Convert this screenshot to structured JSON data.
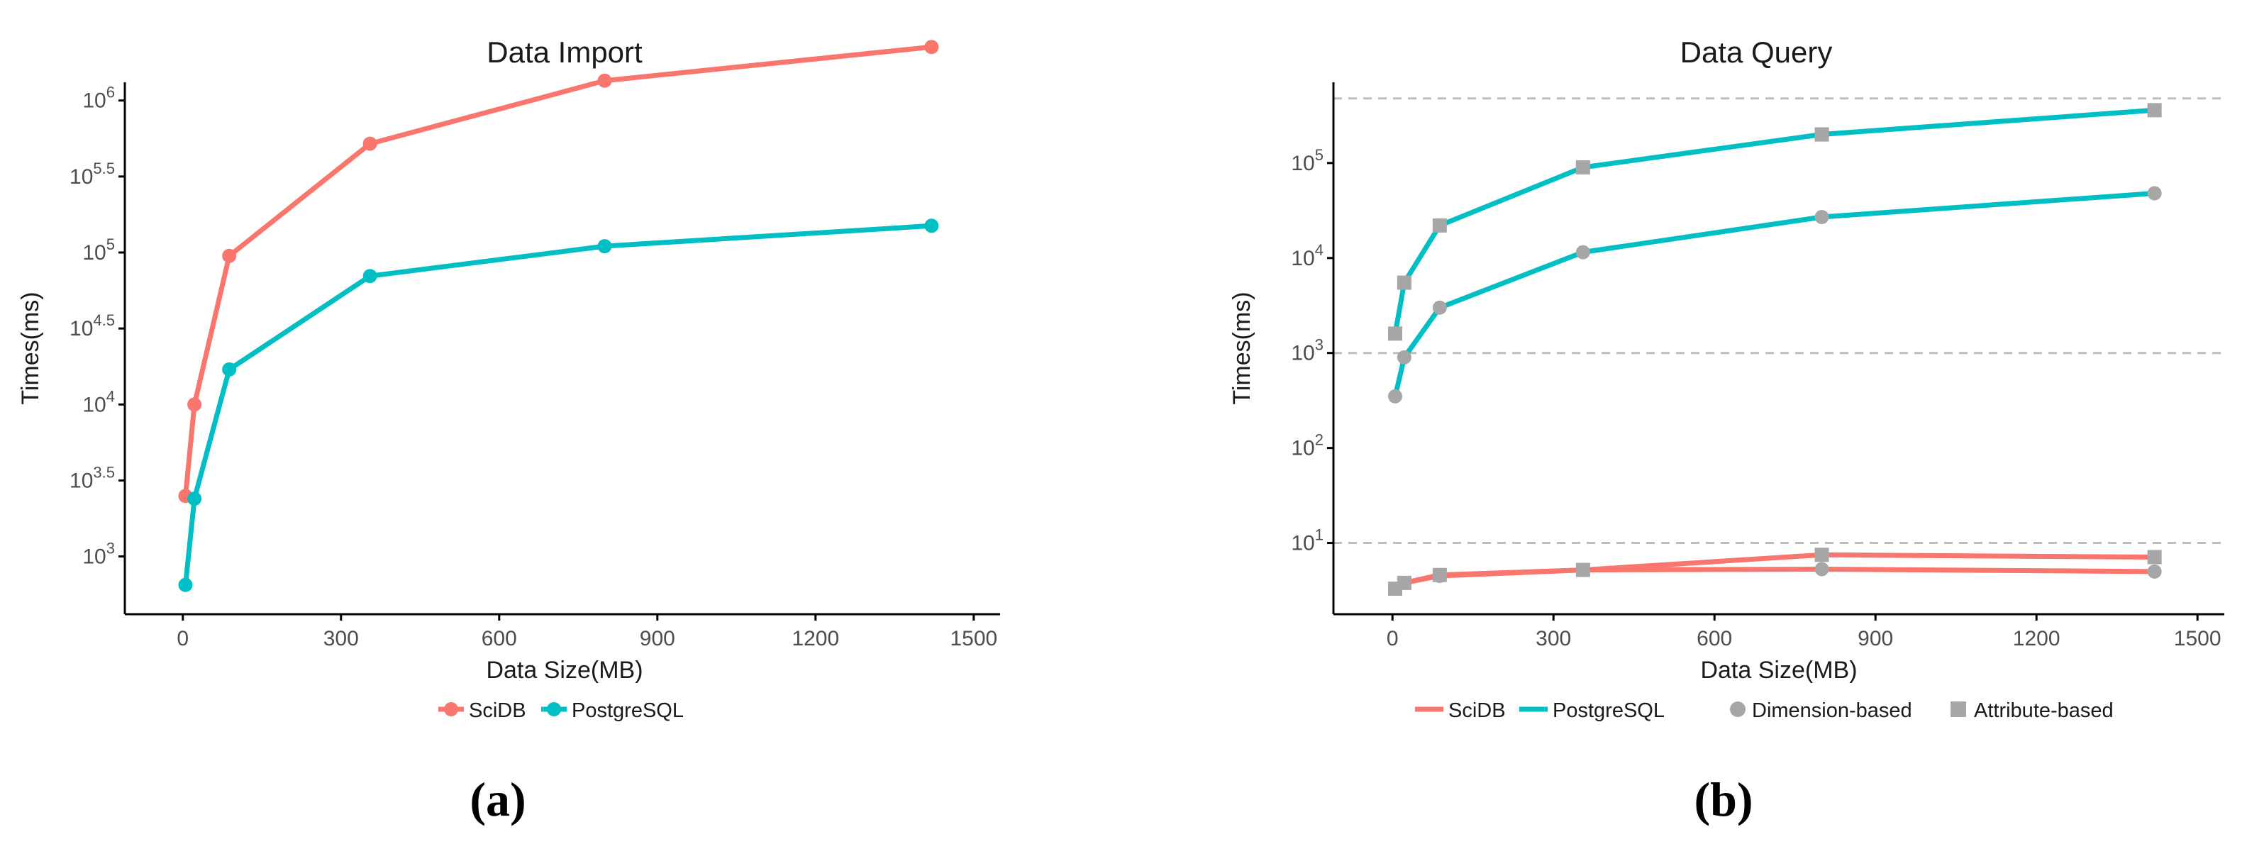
{
  "chart_data": [
    {
      "type": "line",
      "title": "Data Import",
      "xlabel": "Data Size(MB)",
      "ylabel": "Times(ms)",
      "xlim": [
        -110,
        1550
      ],
      "xticks": [
        0,
        300,
        600,
        900,
        1200,
        1500
      ],
      "yscale": "log",
      "ylim_log10": [
        2.62,
        6.12
      ],
      "yticks": [
        {
          "exp": 3,
          "label": "10^3"
        },
        {
          "exp": 3.5,
          "label": "10^3.5"
        },
        {
          "exp": 4,
          "label": "10^4"
        },
        {
          "exp": 4.5,
          "label": "10^4.5"
        },
        {
          "exp": 5,
          "label": "10^5"
        },
        {
          "exp": 5.5,
          "label": "10^5.5"
        },
        {
          "exp": 6,
          "label": "10^6"
        }
      ],
      "grid": false,
      "legend_position": "bottom",
      "x": [
        5,
        22,
        88,
        355,
        800,
        1420
      ],
      "series": [
        {
          "name": "SciDB",
          "color": "#F8766D",
          "values": [
            2500,
            10000,
            95000,
            520000,
            1350000,
            2250000
          ]
        },
        {
          "name": "PostgreSQL",
          "color": "#00BFC4",
          "values": [
            650,
            2400,
            17000,
            70000,
            110000,
            150000
          ]
        }
      ],
      "caption": "(a)"
    },
    {
      "type": "line",
      "title": "Data Query",
      "xlabel": "Data Size(MB)",
      "ylabel": "Times(ms)",
      "xlim": [
        -110,
        1550
      ],
      "xticks": [
        0,
        300,
        600,
        900,
        1200,
        1500
      ],
      "yscale": "log",
      "ylim_log10": [
        0.25,
        5.85
      ],
      "yticks": [
        {
          "exp": 1,
          "label": "10^1"
        },
        {
          "exp": 2,
          "label": "10^2"
        },
        {
          "exp": 3,
          "label": "10^3"
        },
        {
          "exp": 4,
          "label": "10^4"
        },
        {
          "exp": 5,
          "label": "10^5"
        }
      ],
      "hlines_log10": [
        1,
        3,
        5.68
      ],
      "grid": false,
      "legend_position": "bottom",
      "x": [
        5,
        22,
        88,
        355,
        800,
        1420
      ],
      "series": [
        {
          "name": "SciDB",
          "query": "Dimension-based",
          "color": "#F8766D",
          "marker": "circle",
          "values": [
            3.3,
            3.8,
            4.5,
            5.2,
            5.3,
            5.0
          ]
        },
        {
          "name": "SciDB",
          "query": "Attribute-based",
          "color": "#F8766D",
          "marker": "square",
          "values": [
            3.3,
            3.8,
            4.6,
            5.2,
            7.5,
            7.1
          ]
        },
        {
          "name": "PostgreSQL",
          "query": "Dimension-based",
          "color": "#00BFC4",
          "marker": "circle",
          "values": [
            350,
            900,
            3000,
            11500,
            27000,
            48000
          ]
        },
        {
          "name": "PostgreSQL",
          "query": "Attribute-based",
          "color": "#00BFC4",
          "marker": "square",
          "values": [
            1600,
            5500,
            22000,
            90000,
            200000,
            360000
          ]
        }
      ],
      "legend": {
        "lines": [
          {
            "name": "SciDB",
            "color": "#F8766D"
          },
          {
            "name": "PostgreSQL",
            "color": "#00BFC4"
          }
        ],
        "markers": [
          {
            "name": "Dimension-based",
            "shape": "circle",
            "color": "#A6A6A6"
          },
          {
            "name": "Attribute-based",
            "shape": "square",
            "color": "#A6A6A6"
          }
        ]
      },
      "caption": "(b)"
    }
  ]
}
